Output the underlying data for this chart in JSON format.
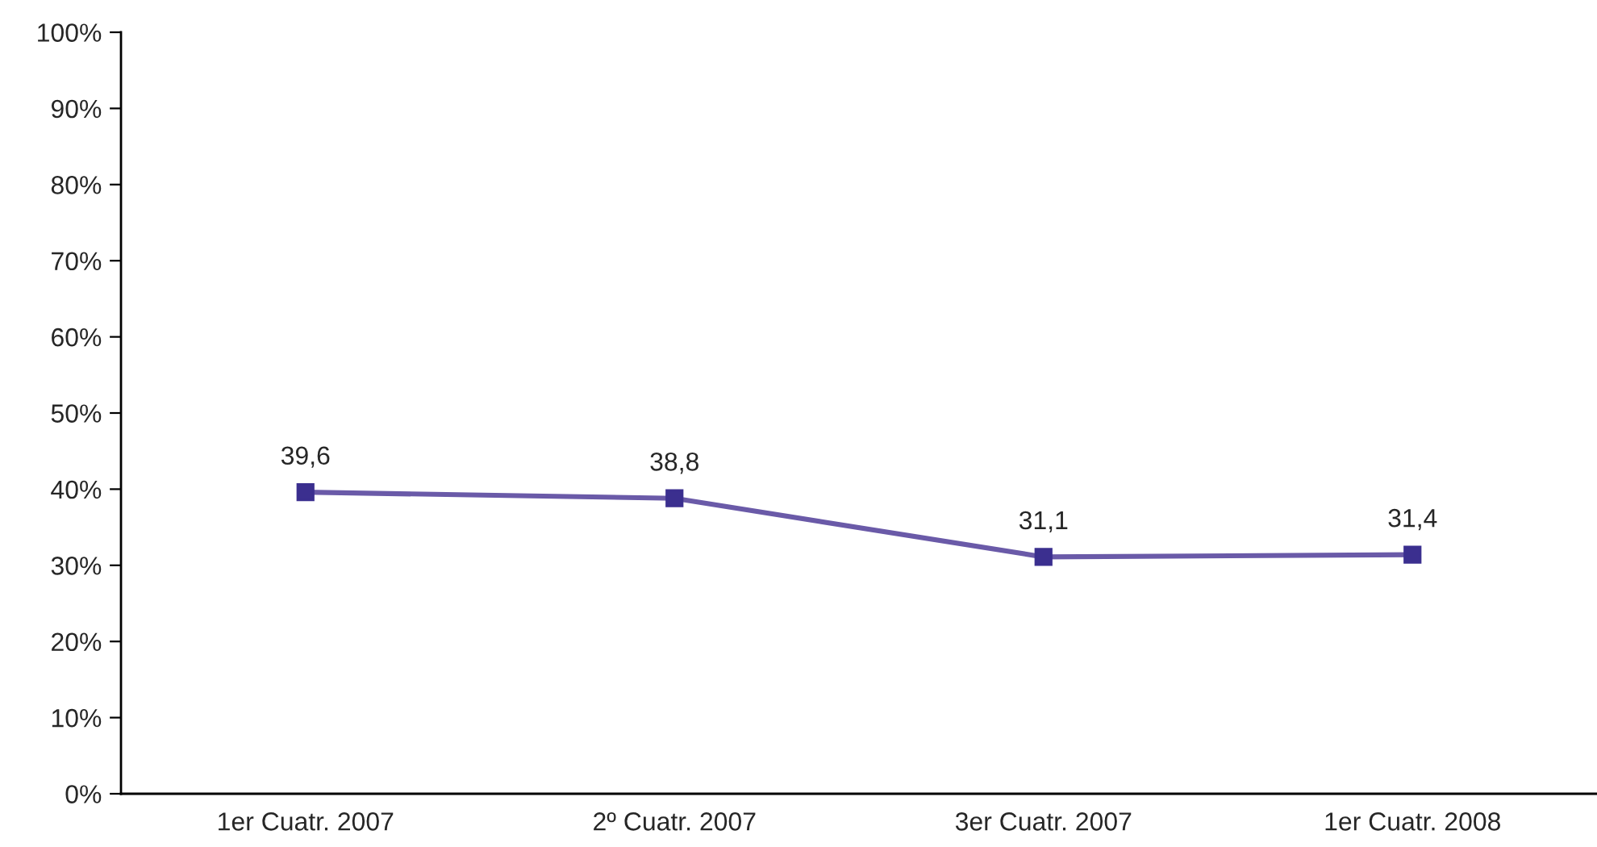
{
  "chart_data": {
    "type": "line",
    "categories": [
      "1er Cuatr. 2007",
      "2º Cuatr. 2007",
      "3er Cuatr. 2007",
      "1er Cuatr. 2008"
    ],
    "series": [
      {
        "color": "#6a5aa8",
        "values": [
          39.6,
          38.8,
          31.1,
          31.4
        ],
        "value_labels": [
          "39,6",
          "38,8",
          "31,1",
          "31,4"
        ]
      }
    ],
    "ylim": [
      0,
      100
    ],
    "yticks": [
      {
        "value": 0,
        "label": "0%"
      },
      {
        "value": 10,
        "label": "10%"
      },
      {
        "value": 20,
        "label": "20%"
      },
      {
        "value": 30,
        "label": "30%"
      },
      {
        "value": 40,
        "label": "40%"
      },
      {
        "value": 50,
        "label": "50%"
      },
      {
        "value": 60,
        "label": "60%"
      },
      {
        "value": 70,
        "label": "70%"
      },
      {
        "value": 80,
        "label": "80%"
      },
      {
        "value": 90,
        "label": "90%"
      },
      {
        "value": 100,
        "label": "100%"
      }
    ],
    "marker": "square",
    "line_style": "solid",
    "grid": false,
    "legend": false
  }
}
